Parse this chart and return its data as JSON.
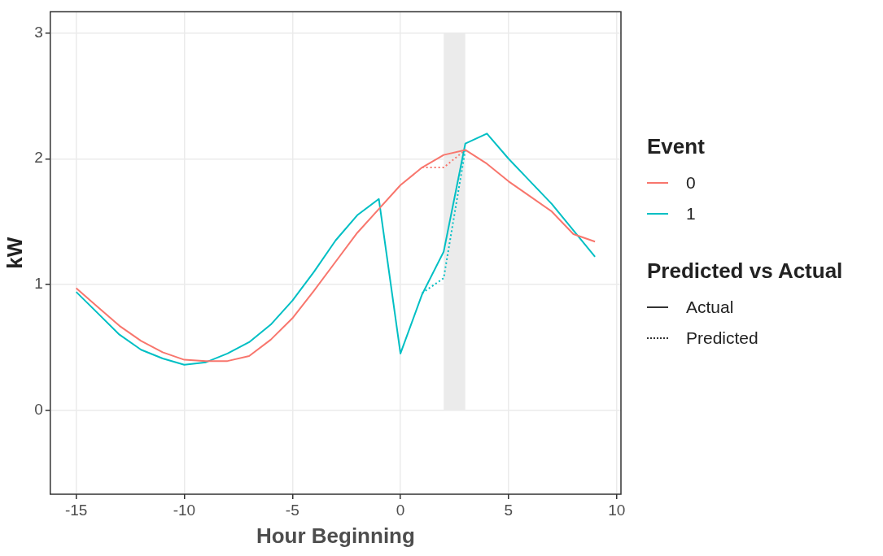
{
  "chart_data": {
    "type": "line",
    "xlabel": "Hour Beginning",
    "ylabel": "kW",
    "legend_title": "Event",
    "x": [
      -15,
      -14,
      -13,
      -12,
      -11,
      -10,
      -9,
      -8,
      -7,
      -6,
      -5,
      -4,
      -3,
      -2,
      -1,
      0,
      1,
      2,
      3,
      4,
      5,
      6,
      7,
      8,
      9
    ],
    "series": [
      {
        "name": "0",
        "color": "#f8766d",
        "line_style": "solid",
        "values": [
          0.97,
          0.82,
          0.67,
          0.55,
          0.46,
          0.4,
          0.39,
          0.39,
          0.43,
          0.56,
          0.73,
          0.95,
          1.18,
          1.41,
          1.6,
          1.79,
          1.93,
          2.03,
          2.07,
          1.96,
          1.82,
          1.7,
          1.58,
          1.4,
          1.34
        ]
      },
      {
        "name": "1",
        "color": "#00bfc4",
        "line_style": "solid",
        "values": [
          0.94,
          0.77,
          0.6,
          0.48,
          0.41,
          0.36,
          0.38,
          0.45,
          0.54,
          0.68,
          0.87,
          1.1,
          1.35,
          1.55,
          1.68,
          0.45,
          0.92,
          1.26,
          2.12,
          2.2,
          2.0,
          1.82,
          1.64,
          1.43,
          1.22
        ]
      },
      {
        "color": "#f8766d",
        "line_style": "dotted",
        "x": [
          1,
          2,
          3
        ],
        "values": [
          1.93,
          1.93,
          2.07
        ]
      },
      {
        "color": "#00bfc4",
        "line_style": "dotted",
        "x": [
          1,
          2,
          3
        ],
        "values": [
          0.93,
          1.05,
          2.07
        ]
      }
    ],
    "bands": [
      {
        "axis": "x",
        "from": 2,
        "to": 3,
        "color": "#ebebeb"
      }
    ],
    "annotations": [
      "Predicted vs Actual",
      "Actual",
      "Predicted"
    ],
    "xlim": [
      -16.2,
      10.2
    ],
    "xticks": [
      -15,
      -10,
      -5,
      0,
      5,
      10
    ],
    "ylim": [
      -0.67,
      3.17
    ],
    "yticks": [
      0,
      1,
      2,
      3
    ],
    "grid": true,
    "legend": "right",
    "marker": "none"
  }
}
